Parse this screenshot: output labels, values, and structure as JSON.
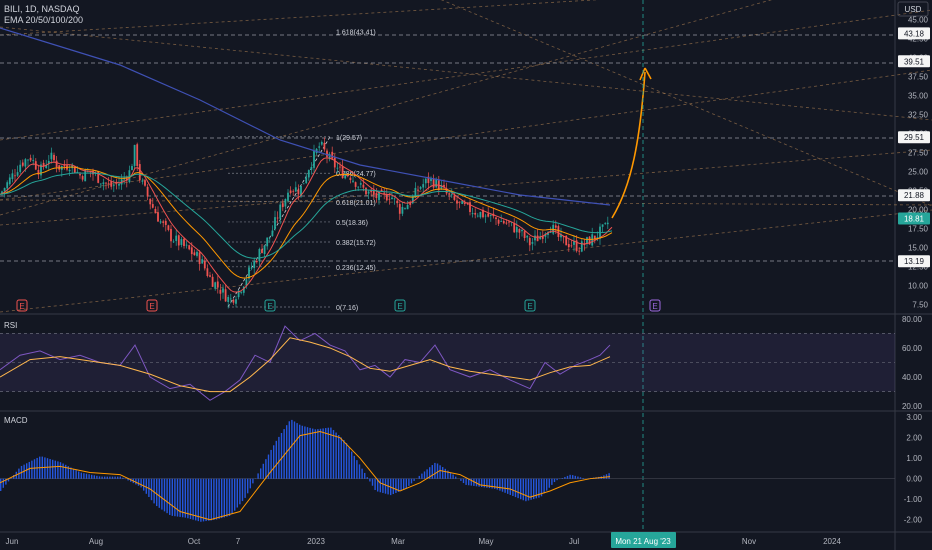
{
  "header": {
    "symbol_line": "BILI, 1D, NASDAQ",
    "indicator_line": "EMA 20/50/100/200",
    "currency": "USD"
  },
  "panes": {
    "rsi_label": "RSI",
    "macd_label": "MACD"
  },
  "crosshair": {
    "date_label": "Mon 21 Aug '23"
  },
  "colors": {
    "background": "#131722",
    "candle_up": "#26a69a",
    "candle_down": "#ef5350",
    "ema20": "#ef5350",
    "ema50": "#ff9800",
    "ema100": "#26a69a",
    "ema200": "#3f51b5",
    "projection_arrow": "#ff9800",
    "rsi_line": "#7e57c2",
    "rsi_ma": "#ffb74d",
    "macd_hist": "#2962ff",
    "macd_signal": "#ff9800"
  },
  "chart_data": [
    {
      "type": "candlestick",
      "title": "BILI, 1D, NASDAQ",
      "x_axis_labels": [
        "Jun",
        "Aug",
        "Oct",
        "7",
        "2023",
        "Mar",
        "May",
        "Jul",
        "Mon 21 Aug '23",
        "Nov",
        "2024"
      ],
      "y_axis_ticks": [
        7.5,
        10.0,
        12.5,
        15.0,
        17.5,
        20.0,
        22.5,
        25.0,
        27.5,
        30.0,
        32.5,
        35.0,
        37.5,
        40.0,
        42.5,
        45.0
      ],
      "ylim": [
        6.5,
        46
      ],
      "price_labels": [
        {
          "value": 43.18,
          "text": "43.18"
        },
        {
          "value": 39.51,
          "text": "39.51"
        },
        {
          "value": 29.51,
          "text": "29.51"
        },
        {
          "value": 21.88,
          "text": "21.88"
        },
        {
          "value": 18.81,
          "text": "18.81",
          "current": true
        },
        {
          "value": 13.19,
          "text": "13.19"
        }
      ],
      "fibonacci_levels": [
        {
          "text": "1.618(43.41)",
          "value": 43.41
        },
        {
          "text": "1(29.57)",
          "value": 29.57
        },
        {
          "text": "0.786(24.77)",
          "value": 24.77
        },
        {
          "text": "0.618(21.01)",
          "value": 21.01
        },
        {
          "text": "0.5(18.36)",
          "value": 18.36
        },
        {
          "text": "0.382(15.72)",
          "value": 15.72
        },
        {
          "text": "0.236(12.45)",
          "value": 12.45
        },
        {
          "text": "0(7.16)",
          "value": 7.16
        }
      ],
      "earnings_markers": [
        "E",
        "E",
        "E",
        "E",
        "E",
        "E"
      ],
      "ema_series": [
        "EMA 20",
        "EMA 50",
        "EMA 100",
        "EMA 200"
      ],
      "price_path": [
        [
          0,
          22
        ],
        [
          10,
          24
        ],
        [
          20,
          26
        ],
        [
          30,
          27
        ],
        [
          40,
          25
        ],
        [
          50,
          27
        ],
        [
          60,
          25.5
        ],
        [
          70,
          26
        ],
        [
          80,
          24.5
        ],
        [
          90,
          25
        ],
        [
          100,
          24
        ],
        [
          110,
          23
        ],
        [
          120,
          23.5
        ],
        [
          130,
          25
        ],
        [
          135,
          28
        ],
        [
          140,
          24
        ],
        [
          150,
          21
        ],
        [
          160,
          18.5
        ],
        [
          170,
          16.5
        ],
        [
          180,
          15.5
        ],
        [
          190,
          14.5
        ],
        [
          200,
          13.5
        ],
        [
          210,
          11
        ],
        [
          220,
          9.5
        ],
        [
          230,
          8
        ],
        [
          240,
          9.5
        ],
        [
          250,
          12
        ],
        [
          260,
          14.5
        ],
        [
          270,
          16.5
        ],
        [
          280,
          20
        ],
        [
          290,
          23
        ],
        [
          300,
          22.5
        ],
        [
          310,
          26
        ],
        [
          320,
          28.5
        ],
        [
          330,
          26.5
        ],
        [
          340,
          25
        ],
        [
          350,
          24.5
        ],
        [
          360,
          23
        ],
        [
          370,
          22
        ],
        [
          380,
          21.5
        ],
        [
          390,
          22
        ],
        [
          400,
          20
        ],
        [
          410,
          21
        ],
        [
          420,
          23
        ],
        [
          430,
          24
        ],
        [
          440,
          23
        ],
        [
          450,
          21.5
        ],
        [
          460,
          20.5
        ],
        [
          470,
          20
        ],
        [
          480,
          19.5
        ],
        [
          490,
          19
        ],
        [
          500,
          18.5
        ],
        [
          510,
          18
        ],
        [
          520,
          17
        ],
        [
          530,
          15.5
        ],
        [
          540,
          16.5
        ],
        [
          550,
          18
        ],
        [
          560,
          16
        ],
        [
          570,
          15.5
        ],
        [
          580,
          15
        ],
        [
          590,
          16
        ],
        [
          600,
          17
        ],
        [
          605,
          17.5
        ],
        [
          610,
          18.81
        ]
      ]
    },
    {
      "type": "line",
      "title": "RSI",
      "y_axis_ticks": [
        20.0,
        40.0,
        60.0,
        80.0
      ],
      "ylim": [
        18,
        82
      ],
      "series": [
        {
          "values": [
            [
              0,
              45
            ],
            [
              20,
              55
            ],
            [
              40,
              58
            ],
            [
              60,
              52
            ],
            [
              80,
              55
            ],
            [
              100,
              50
            ],
            [
              120,
              48
            ],
            [
              135,
              62
            ],
            [
              150,
              40
            ],
            [
              170,
              32
            ],
            [
              190,
              35
            ],
            [
              210,
              24
            ],
            [
              225,
              30
            ],
            [
              240,
              38
            ],
            [
              255,
              55
            ],
            [
              270,
              50
            ],
            [
              285,
              75
            ],
            [
              300,
              65
            ],
            [
              315,
              70
            ],
            [
              330,
              62
            ],
            [
              345,
              58
            ],
            [
              360,
              45
            ],
            [
              375,
              48
            ],
            [
              390,
              40
            ],
            [
              405,
              52
            ],
            [
              420,
              50
            ],
            [
              435,
              62
            ],
            [
              450,
              45
            ],
            [
              470,
              40
            ],
            [
              490,
              45
            ],
            [
              510,
              38
            ],
            [
              530,
              32
            ],
            [
              545,
              50
            ],
            [
              560,
              42
            ],
            [
              575,
              48
            ],
            [
              590,
              52
            ],
            [
              600,
              55
            ],
            [
              610,
              62
            ]
          ]
        },
        {
          "values": [
            [
              0,
              40
            ],
            [
              30,
              52
            ],
            [
              60,
              54
            ],
            [
              90,
              51
            ],
            [
              120,
              48
            ],
            [
              150,
              42
            ],
            [
              180,
              34
            ],
            [
              210,
              30
            ],
            [
              230,
              30
            ],
            [
              250,
              40
            ],
            [
              270,
              52
            ],
            [
              290,
              67
            ],
            [
              310,
              64
            ],
            [
              330,
              60
            ],
            [
              350,
              54
            ],
            [
              370,
              46
            ],
            [
              390,
              44
            ],
            [
              410,
              48
            ],
            [
              430,
              52
            ],
            [
              450,
              47
            ],
            [
              470,
              44
            ],
            [
              490,
              42
            ],
            [
              510,
              40
            ],
            [
              530,
              38
            ],
            [
              550,
              43
            ],
            [
              570,
              47
            ],
            [
              590,
              48
            ],
            [
              610,
              54
            ]
          ]
        }
      ]
    },
    {
      "type": "bar",
      "title": "MACD",
      "y_axis_ticks": [
        3.0,
        2.0,
        1.0,
        0.0,
        -1.0,
        -2.0
      ],
      "ylim": [
        -2.5,
        3.2
      ],
      "series": [
        {
          "name": "histogram",
          "values": [
            [
              0,
              -0.6
            ],
            [
              20,
              0.6
            ],
            [
              40,
              1.1
            ],
            [
              60,
              0.8
            ],
            [
              80,
              0.3
            ],
            [
              100,
              0.1
            ],
            [
              120,
              0.1
            ],
            [
              140,
              -0.4
            ],
            [
              155,
              -1.3
            ],
            [
              170,
              -1.8
            ],
            [
              185,
              -1.9
            ],
            [
              200,
              -2.1
            ],
            [
              215,
              -2.0
            ],
            [
              230,
              -1.8
            ],
            [
              245,
              -0.9
            ],
            [
              260,
              0.5
            ],
            [
              275,
              1.8
            ],
            [
              290,
              2.9
            ],
            [
              300,
              2.6
            ],
            [
              315,
              2.4
            ],
            [
              330,
              2.5
            ],
            [
              345,
              1.8
            ],
            [
              355,
              1.0
            ],
            [
              365,
              0.2
            ],
            [
              375,
              -0.6
            ],
            [
              390,
              -0.8
            ],
            [
              405,
              -0.5
            ],
            [
              420,
              0.2
            ],
            [
              435,
              0.8
            ],
            [
              450,
              0.3
            ],
            [
              465,
              -0.3
            ],
            [
              480,
              -0.4
            ],
            [
              495,
              -0.5
            ],
            [
              510,
              -0.8
            ],
            [
              525,
              -1.1
            ],
            [
              540,
              -0.9
            ],
            [
              555,
              -0.1
            ],
            [
              570,
              0.2
            ],
            [
              585,
              0.0
            ],
            [
              600,
              0.1
            ],
            [
              610,
              0.3
            ]
          ]
        },
        {
          "name": "signal",
          "values": [
            [
              0,
              -0.2
            ],
            [
              30,
              0.5
            ],
            [
              60,
              0.6
            ],
            [
              90,
              0.3
            ],
            [
              120,
              0.2
            ],
            [
              150,
              -0.5
            ],
            [
              180,
              -1.6
            ],
            [
              210,
              -2.0
            ],
            [
              240,
              -1.6
            ],
            [
              270,
              0.3
            ],
            [
              300,
              2.1
            ],
            [
              320,
              2.3
            ],
            [
              340,
              2.0
            ],
            [
              360,
              1.0
            ],
            [
              380,
              -0.2
            ],
            [
              400,
              -0.6
            ],
            [
              420,
              -0.2
            ],
            [
              440,
              0.4
            ],
            [
              460,
              0.2
            ],
            [
              480,
              -0.3
            ],
            [
              510,
              -0.5
            ],
            [
              530,
              -0.9
            ],
            [
              550,
              -0.6
            ],
            [
              570,
              -0.2
            ],
            [
              590,
              0.0
            ],
            [
              610,
              0.1
            ]
          ]
        }
      ]
    }
  ]
}
